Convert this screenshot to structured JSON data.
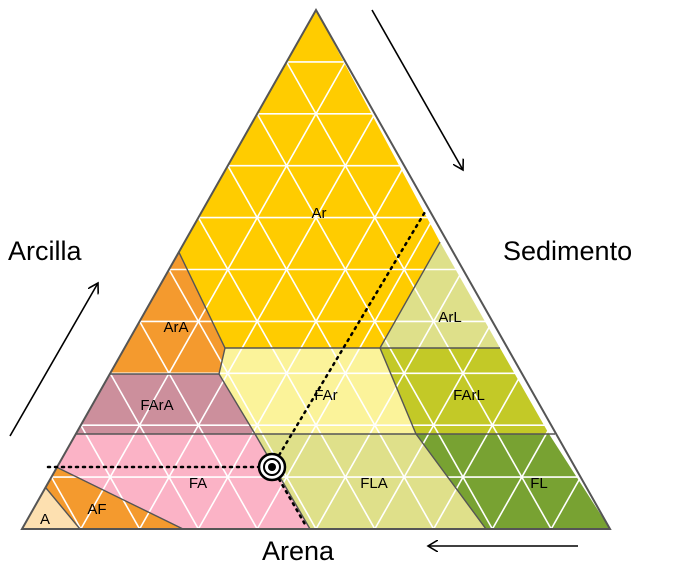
{
  "axes": {
    "clay": "Arcilla",
    "silt": "Sedimento",
    "sand": "Arena"
  },
  "classes": [
    {
      "id": "ar",
      "label": "Ar",
      "color": "#ffcc00"
    },
    {
      "id": "ara",
      "label": "ArA",
      "color": "#f49a2e"
    },
    {
      "id": "arl",
      "label": "ArL",
      "color": "#dee08a"
    },
    {
      "id": "fara",
      "label": "FArA",
      "color": "#cc8f9c"
    },
    {
      "id": "far",
      "label": "FAr",
      "color": "#fbf39a"
    },
    {
      "id": "farl",
      "label": "FArL",
      "color": "#c3c927"
    },
    {
      "id": "fa",
      "label": "FA",
      "color": "#fbb3c6"
    },
    {
      "id": "fla",
      "label": "FLA",
      "color": "#dfe08a"
    },
    {
      "id": "fl",
      "label": "FL",
      "color": "#78a232"
    },
    {
      "id": "af",
      "label": "AF",
      "color": "#f49a2e"
    },
    {
      "id": "a",
      "label": "A",
      "color": "#fde0b0"
    }
  ]
}
